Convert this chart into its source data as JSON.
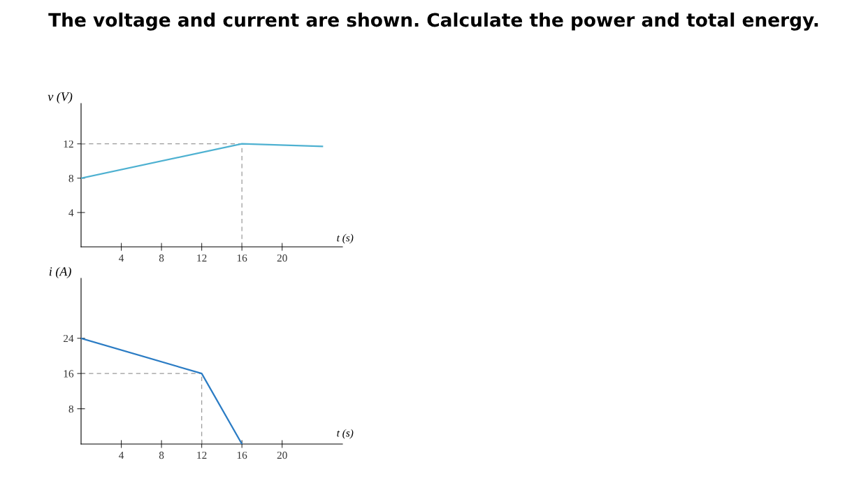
{
  "chart_data": [
    {
      "type": "line",
      "title": "The voltage and current are shown. Calculate the power and total energy.",
      "xlabel": "t (s)",
      "ylabel": "v (V)",
      "series": [
        {
          "color": "#4eb1d1",
          "x": [
            0,
            16,
            24
          ],
          "values": [
            8,
            12,
            11.7
          ]
        }
      ],
      "xlim": [
        0,
        26
      ],
      "ylim": [
        0,
        16.7
      ],
      "xticks": [
        4,
        8,
        12,
        16,
        20
      ],
      "yticks": [
        4,
        8,
        12
      ],
      "grid": false,
      "marker": "none",
      "line_style": "solid",
      "ref_lines": [
        {
          "axis": "y",
          "value": 12,
          "color": "#9a9a9a",
          "line_style": "dashed"
        },
        {
          "axis": "x",
          "value": 16,
          "color": "#9a9a9a",
          "line_style": "dashed"
        }
      ]
    },
    {
      "type": "line",
      "xlabel": "t (s)",
      "ylabel": "i (A)",
      "series": [
        {
          "color": "#2b7cc4",
          "x": [
            0,
            12,
            16
          ],
          "values": [
            24,
            16,
            0
          ]
        }
      ],
      "xlim": [
        0,
        26
      ],
      "ylim": [
        0,
        37.6
      ],
      "xticks": [
        4,
        8,
        12,
        16,
        20
      ],
      "yticks": [
        8,
        16,
        24
      ],
      "grid": false,
      "marker": "none",
      "line_style": "solid",
      "ref_lines": [
        {
          "axis": "y",
          "value": 16,
          "color": "#9a9a9a",
          "line_style": "dashed"
        },
        {
          "axis": "x",
          "value": 12,
          "color": "#9a9a9a",
          "line_style": "dashed"
        }
      ]
    }
  ]
}
